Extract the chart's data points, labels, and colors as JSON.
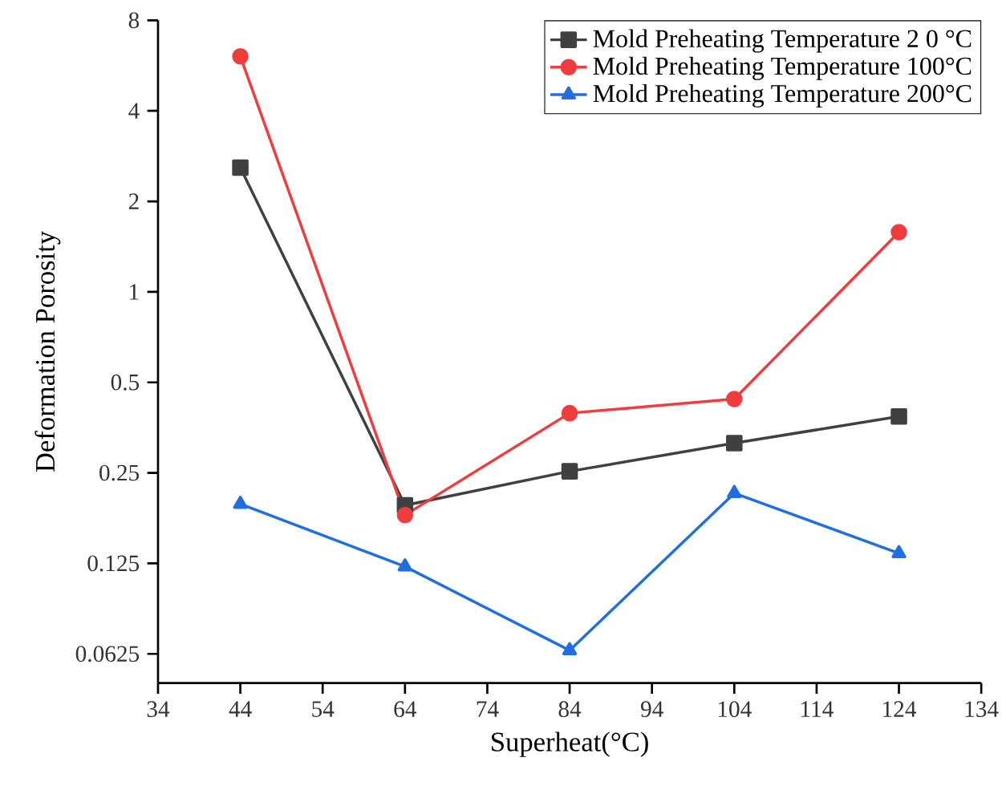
{
  "chart_data": {
    "type": "line",
    "xlabel": "Superheat(°C)",
    "ylabel": "Deformation Porosity",
    "log": "y",
    "xlim": [
      34,
      134
    ],
    "xticks": [
      34,
      44,
      54,
      64,
      74,
      84,
      94,
      104,
      114,
      124,
      134
    ],
    "ylim": [
      0.05,
      8
    ],
    "yticks": [
      0.0625,
      0.125,
      0.25,
      0.5,
      1,
      2,
      4,
      8
    ],
    "x": [
      44,
      64,
      84,
      104,
      124
    ],
    "legend": "top right",
    "grid": false,
    "line_style": "solid",
    "series": [
      {
        "name": "Mold Preheating Temperature 2 0 °C",
        "color": "#404040",
        "marker": "square",
        "values": [
          2.59,
          0.195,
          0.253,
          0.314,
          0.385
        ]
      },
      {
        "name": "Mold Preheating Temperature 100°C",
        "color": "#f03c3c",
        "marker": "circle",
        "values": [
          6.07,
          0.181,
          0.395,
          0.44,
          1.58
        ]
      },
      {
        "name": "Mold Preheating Temperature 200°C",
        "color": "#1f6fe0",
        "marker": "triangle",
        "values": [
          0.197,
          0.122,
          0.0642,
          0.214,
          0.135
        ]
      }
    ]
  }
}
